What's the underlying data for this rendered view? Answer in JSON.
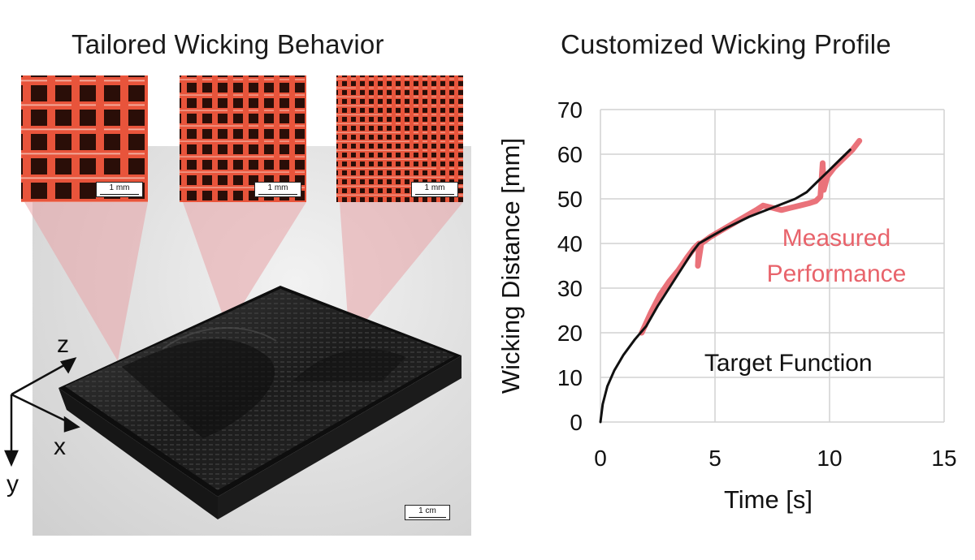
{
  "left_panel": {
    "title": "Tailored Wicking Behavior",
    "micrograph_scale_labels": [
      "1 mm",
      "1 mm",
      "1 mm"
    ],
    "photo_scale_label": "1 cm",
    "axes": {
      "z": "z",
      "x": "x",
      "y": "y"
    },
    "micrograph_color": "#e8543b",
    "pore_color": "#2a0e08"
  },
  "right_panel": {
    "title": "Customized Wicking Profile"
  },
  "chart_data": {
    "type": "line",
    "title": "Customized Wicking Profile",
    "xlabel": "Time [s]",
    "ylabel": "Wicking Distance [mm]",
    "xlim": [
      0,
      15
    ],
    "ylim": [
      0,
      70
    ],
    "xticks": [
      0,
      5,
      10,
      15
    ],
    "yticks": [
      0,
      10,
      20,
      30,
      40,
      50,
      60,
      70
    ],
    "grid": true,
    "series": [
      {
        "name": "Target Function",
        "color": "#111111",
        "x": [
          0,
          0.1,
          0.3,
          0.6,
          1.0,
          1.5,
          2.0,
          2.5,
          3.0,
          3.5,
          4.0,
          4.3,
          4.8,
          5.5,
          6.5,
          7.5,
          8.5,
          9.0,
          9.5,
          10.0,
          10.5,
          10.9
        ],
        "y": [
          0,
          4,
          8,
          11.5,
          15,
          18.5,
          21.5,
          26,
          30,
          34,
          38,
          40,
          41.5,
          43.5,
          46,
          48,
          50,
          51.5,
          54,
          56.5,
          59,
          61
        ]
      },
      {
        "name": "Measured Performance",
        "color": "#e8636b",
        "x": [
          1.8,
          2.2,
          2.6,
          3.0,
          3.4,
          3.8,
          4.1,
          4.3,
          4.25,
          4.4,
          4.8,
          5.3,
          5.8,
          6.3,
          6.8,
          7.1,
          7.5,
          7.9,
          8.3,
          8.7,
          9.1,
          9.4,
          9.6,
          9.7,
          9.75,
          9.9,
          10.2,
          10.6,
          11.0,
          11.3
        ],
        "y": [
          20,
          24.5,
          28.5,
          31.5,
          34,
          37,
          39,
          40,
          35,
          40,
          41.5,
          43,
          44.5,
          46,
          47.5,
          48.5,
          48,
          47.5,
          48,
          48.5,
          49,
          49.5,
          50.5,
          58,
          52,
          55,
          57,
          59,
          61,
          63
        ]
      }
    ],
    "annotations": [
      {
        "text": "Measured",
        "x": 10.3,
        "y": 39.5,
        "color": "#e8636b"
      },
      {
        "text": "Performance",
        "x": 10.3,
        "y": 31.5,
        "color": "#e8636b"
      },
      {
        "text": "Target Function",
        "x": 8.2,
        "y": 11.5,
        "color": "#111111"
      }
    ]
  }
}
